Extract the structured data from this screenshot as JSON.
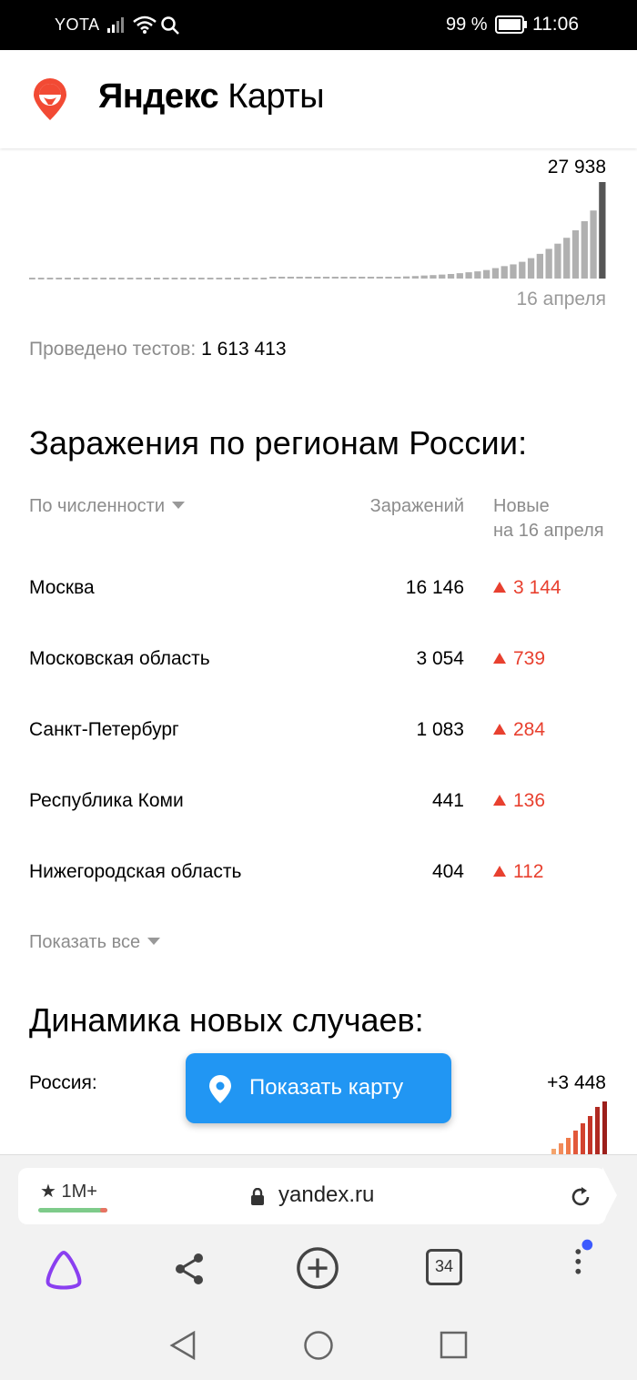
{
  "status_bar": {
    "carrier": "YOTA",
    "battery_percent": "99 %",
    "time": "11:06"
  },
  "header": {
    "title_bold": "Яндекс",
    "title_rest": " Карты"
  },
  "chart_data": {
    "type": "bar",
    "peak_label": "27 938",
    "date_label": "16 апреля",
    "values": [
      0,
      0,
      0,
      0,
      0,
      0,
      0,
      0,
      0,
      0,
      0,
      0,
      0,
      0,
      0,
      0,
      0,
      0,
      0,
      0,
      0,
      0,
      0,
      0,
      0,
      0,
      0,
      28,
      34,
      42,
      54,
      75,
      95,
      117,
      160,
      200,
      242,
      290,
      360,
      410,
      460,
      535,
      620,
      720,
      880,
      1000,
      1150,
      1320,
      1550,
      1820,
      2080,
      2460,
      3020,
      3600,
      4100,
      4850,
      5900,
      7150,
      8600,
      10100,
      11800,
      13970,
      16600,
      19700,
      27938
    ],
    "highlight_last": true
  },
  "tests": {
    "label": "Проведено тестов: ",
    "value": "1 613 413"
  },
  "regions": {
    "title": "Заражения по регионам России:",
    "sort_label": "По численности",
    "col_infections": "Заражений",
    "col_new_line1": "Новые",
    "col_new_line2": "на 16 апреля",
    "rows": [
      {
        "name": "Москва",
        "total": "16 146",
        "new": "3 144"
      },
      {
        "name": "Московская область",
        "total": "3 054",
        "new": "739"
      },
      {
        "name": "Санкт-Петербург",
        "total": "1 083",
        "new": "284"
      },
      {
        "name": "Республика Коми",
        "total": "441",
        "new": "136"
      },
      {
        "name": "Нижегородская область",
        "total": "404",
        "new": "112"
      }
    ],
    "show_all": "Показать все"
  },
  "dynamics": {
    "title": "Динамика новых случаев:",
    "country": "Россия:",
    "value": "+3 448"
  },
  "show_map_button": "Показать карту",
  "browser": {
    "rating": "1M+",
    "url": "yandex.ru",
    "tabs_count": "34"
  },
  "colors": {
    "accent": "#2196f3",
    "increase": "#e8402f",
    "bar": "#b0b0b0",
    "bar_last": "#555555"
  }
}
